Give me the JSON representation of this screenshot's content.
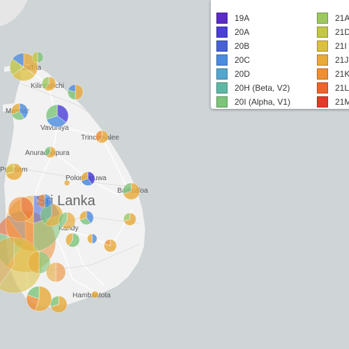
{
  "map": {
    "country_label": "Sri Lanka",
    "places": [
      {
        "id": "jaffna",
        "name": "Jaffna"
      },
      {
        "id": "kilinochchi",
        "name": "Kilinochchi"
      },
      {
        "id": "mannar",
        "name": "Mannar"
      },
      {
        "id": "vavuniya",
        "name": "Vavuniya"
      },
      {
        "id": "trincomalee",
        "name": "Trincomalee"
      },
      {
        "id": "anuradhapura",
        "name": "Anuradhapura"
      },
      {
        "id": "puttalam",
        "name": "Puttalam"
      },
      {
        "id": "polonnaruwa",
        "name": "Polonnaruwa"
      },
      {
        "id": "batticaloa",
        "name": "Batticaloa"
      },
      {
        "id": "kandy",
        "name": "Kandy"
      },
      {
        "id": "hambantota",
        "name": "Hambantota"
      }
    ]
  },
  "legend": {
    "items": [
      {
        "label": "19A",
        "color": "#5a2cc9"
      },
      {
        "label": "20A",
        "color": "#4b3fd6"
      },
      {
        "label": "20B",
        "color": "#4762d9"
      },
      {
        "label": "20C",
        "color": "#4c8be0"
      },
      {
        "label": "20D",
        "color": "#55a6cc"
      },
      {
        "label": "20H (Beta, V2)",
        "color": "#5fb8a4"
      },
      {
        "label": "20I (Alpha, V1)",
        "color": "#7cc47a"
      },
      {
        "label": "21A",
        "color": "#9cc85f"
      },
      {
        "label": "21D",
        "color": "#c2c745"
      },
      {
        "label": "21I",
        "color": "#dcc03c"
      },
      {
        "label": "21J",
        "color": "#e8aa38"
      },
      {
        "label": "21K",
        "color": "#ef8e33"
      },
      {
        "label": "21L",
        "color": "#ee642d"
      },
      {
        "label": "21M",
        "color": "#e43a2a"
      }
    ]
  }
}
